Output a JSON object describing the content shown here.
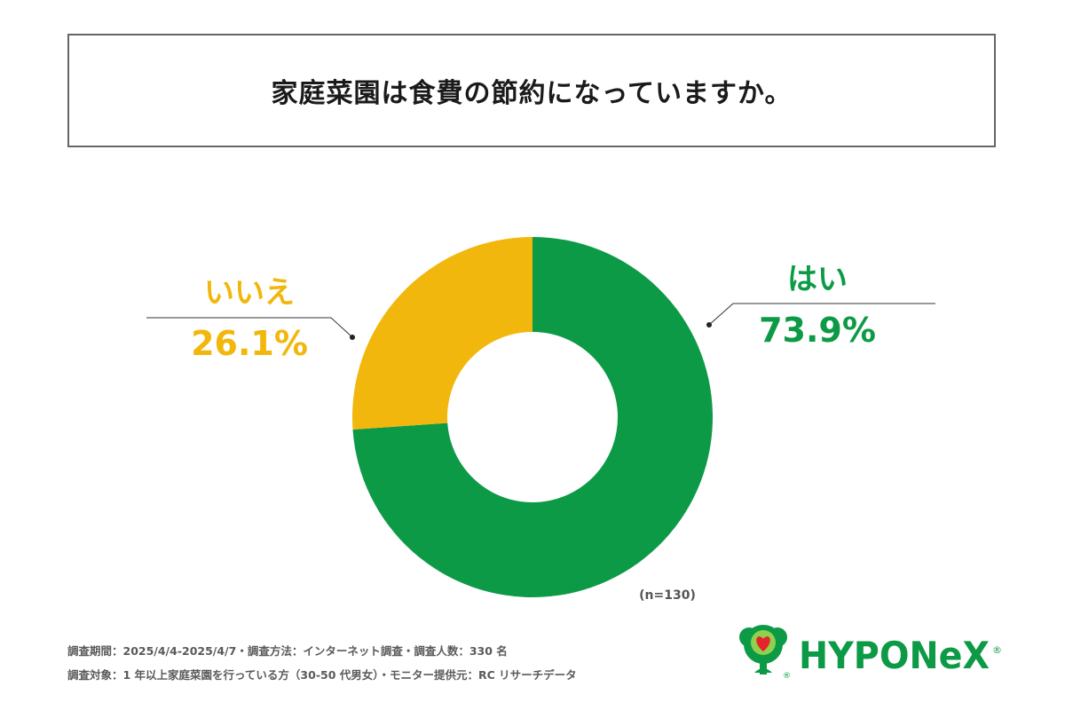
{
  "title": "家庭菜園は食費の節約になっていますか。",
  "chart_data": {
    "type": "pie",
    "variant": "donut",
    "slices": [
      {
        "label": "はい",
        "value": 73.9,
        "display": "73.9%",
        "color": "#0d9a46"
      },
      {
        "label": "いいえ",
        "value": 26.1,
        "display": "26.1%",
        "color": "#f2b70c"
      }
    ],
    "sample_note": "(n=130)"
  },
  "footnotes": {
    "line1": "調査期間：2025/4/4-2025/4/7・調査方法：インターネット調査・調査人数：330 名",
    "line2": "調査対象：1 年以上家庭菜園を行っている方（30-50 代男女）・モニター提供元：RC リサーチデータ"
  },
  "logo": {
    "text": "HYPONeX",
    "mark": "®",
    "color": "#0d9a46",
    "icon": "tree-heart-icon"
  }
}
